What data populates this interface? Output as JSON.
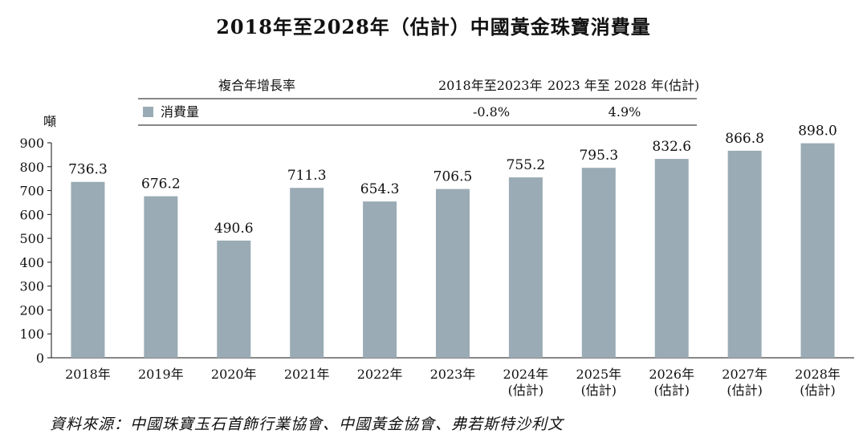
{
  "title": "2018年至2028年（估計）中國黃金珠寶消費量",
  "source": "資料來源：中國珠寶玉石首飾行業協會、中國黃金協會、弗若斯特沙利文",
  "cagr_table": {
    "header_label": "複合年增長率",
    "period1": "2018年至2023年",
    "period2": "2023 年至 2028 年(估計)",
    "row_label": "消費量",
    "value1": "-0.8%",
    "value2": "4.9%"
  },
  "chart_data": {
    "type": "bar",
    "ylabel": "噸",
    "ylim": [
      0,
      900
    ],
    "yticks": [
      0,
      100,
      200,
      300,
      400,
      500,
      600,
      700,
      800,
      900
    ],
    "categories": [
      "2018年",
      "2019年",
      "2020年",
      "2021年",
      "2022年",
      "2023年",
      "2024年\n(估計)",
      "2025年\n(估計)",
      "2026年\n(估計)",
      "2027年\n(估計)",
      "2028年\n(估計)"
    ],
    "values": [
      736.3,
      676.2,
      490.6,
      711.3,
      654.3,
      706.5,
      755.2,
      795.3,
      832.6,
      866.8,
      898.0
    ],
    "value_labels": [
      "736.3",
      "676.2",
      "490.6",
      "711.3",
      "654.3",
      "706.5",
      "755.2",
      "795.3",
      "832.6",
      "866.8",
      "898.0"
    ],
    "bar_color": "#9aabb5",
    "grid": false
  }
}
